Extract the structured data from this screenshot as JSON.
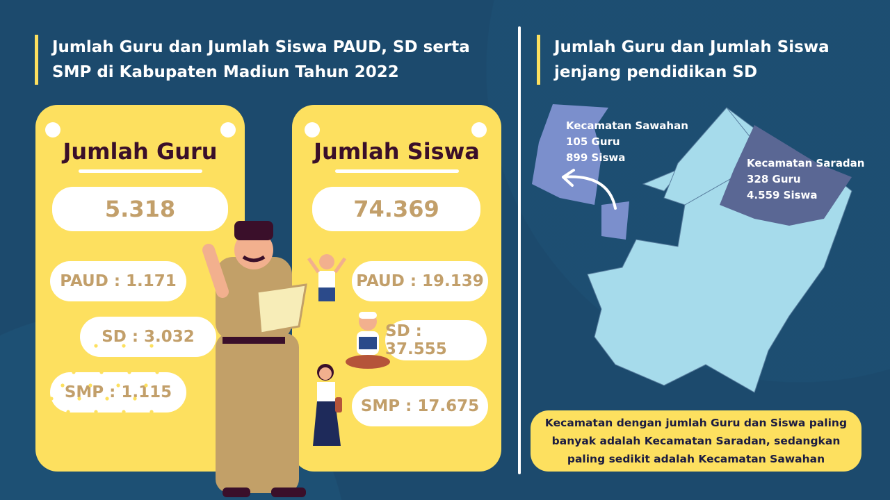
{
  "left": {
    "title_line1": "Jumlah Guru dan Jumlah Siswa PAUD, SD serta",
    "title_line2": "SMP di Kabupaten Madiun Tahun 2022",
    "guru": {
      "heading": "Jumlah Guru",
      "total": "5.318",
      "paud": "PAUD : 1.171",
      "sd": "SD : 3.032",
      "smp": "SMP : 1.115"
    },
    "siswa": {
      "heading": "Jumlah Siswa",
      "total": "74.369",
      "paud": "PAUD : 19.139",
      "sd": "SD : 37.555",
      "smp": "SMP : 17.675"
    }
  },
  "right": {
    "title_line1": "Jumlah Guru dan Jumlah Siswa",
    "title_line2": "jenjang pendidikan SD",
    "sawahan": {
      "name": "Kecamatan Sawahan",
      "guru": "105 Guru",
      "siswa": "899 Siswa"
    },
    "saradan": {
      "name": "Kecamatan Saradan",
      "guru": "328 Guru",
      "siswa": "4.559 Siswa"
    },
    "note": "Kecamatan dengan jumlah Guru dan Siswa paling banyak adalah Kecamatan Saradan, sedangkan paling sedikit adalah Kecamatan Sawahan"
  },
  "colors": {
    "background": "#1c4a6d",
    "card": "#fde05f",
    "value_text": "#c29f6a",
    "map_base": "#a6dbeb",
    "map_sawahan": "#7b8fcc",
    "map_saradan": "#5a6794"
  }
}
